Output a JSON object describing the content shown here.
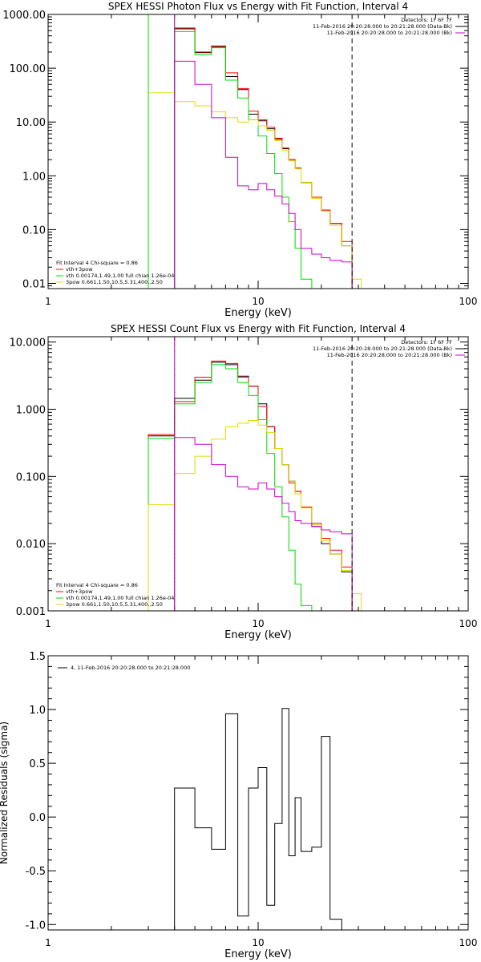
{
  "chart_data": [
    {
      "type": "line",
      "title": "SPEX HESSI Photon Flux vs Energy with Fit Function, Interval 4",
      "xlabel": "Energy (keV)",
      "ylabel": "",
      "xscale": "log",
      "yscale": "log",
      "xlim": [
        1,
        100
      ],
      "ylim": [
        0.008,
        1000
      ],
      "xticks": [
        "1",
        "10",
        "100"
      ],
      "yticks": [
        "1000.00",
        "100.00",
        "10.00",
        "1.00",
        "0.10",
        "0.01"
      ],
      "edges": [
        3.0,
        4.0,
        5.0,
        6.0,
        7.0,
        8.0,
        9.0,
        10.0,
        11.0,
        12.0,
        13.0,
        14.0,
        15.0,
        16.0,
        18.0,
        20.0,
        22.0,
        25.0,
        28.0,
        31.0,
        35.0
      ],
      "series": [
        {
          "name": "",
          "color": "#000000",
          "values": [
            null,
            540,
            195,
            250,
            70,
            40,
            14.0,
            10.5,
            7.5,
            4.8,
            3.2,
            2.0,
            1.4,
            0.75,
            0.4,
            0.23,
            0.13,
            0.05,
            null,
            null
          ]
        },
        {
          "name": "vth+3pow",
          "color": "#ff0000",
          "values": [
            null,
            560,
            200,
            260,
            82,
            42,
            16.0,
            11.0,
            8.0,
            5.0,
            3.3,
            2.0,
            1.4,
            0.75,
            0.4,
            0.23,
            0.13,
            0.06,
            null,
            null
          ]
        },
        {
          "name": "vth 0.00174,1.49,1.00  full chian 1.26e-04",
          "color": "#00dd00",
          "values": [
            null,
            480,
            180,
            240,
            60,
            28,
            11.0,
            5.5,
            2.6,
            1.1,
            0.4,
            0.14,
            0.045,
            0.012,
            null,
            null,
            null,
            null,
            null,
            null
          ]
        },
        {
          "name": "3pow 0.661,1.50,10.5,5.31,400.,2.50",
          "color": "#dddd00",
          "values": [
            35,
            24,
            20,
            15.5,
            12,
            10,
            11.0,
            8.5,
            7.0,
            4.5,
            3.0,
            1.9,
            1.35,
            0.75,
            0.38,
            0.22,
            0.12,
            0.05,
            0.012,
            0.008
          ]
        },
        {
          "name": "",
          "color": "#cc00cc",
          "values": [
            null,
            135,
            50,
            12,
            2.2,
            0.65,
            0.55,
            0.72,
            0.55,
            0.42,
            0.3,
            0.2,
            0.1,
            0.045,
            0.035,
            0.03,
            0.027,
            0.025,
            null,
            null
          ]
        }
      ],
      "vlines": [
        {
          "x": 3.0,
          "color": "#00dd00",
          "style": "solid"
        },
        {
          "x": 4.0,
          "color": "#00dd00",
          "style": "solid"
        },
        {
          "x": 4.0,
          "color": "#cc00cc",
          "style": "solid"
        },
        {
          "x": 28.0,
          "color": "#000000",
          "style": "dashed"
        }
      ],
      "legend_top": [
        {
          "text": "Detectors: 1F 6F 7F",
          "color": ""
        },
        {
          "text": "11-Feb-2016 20:20:28.000 to 20:21:28.000 (Data-Bk)",
          "color": "#000000"
        },
        {
          "text": "11-Feb-2016 20:20:28.000 to 20:21:28.000 (Bk)",
          "color": "#cc00cc"
        }
      ],
      "legend_fit": [
        {
          "text": "Fit Interval  4   Chi-square = 0.86",
          "color": ""
        },
        {
          "text": "vth+3pow",
          "color": "#ff0000"
        },
        {
          "text": "vth 0.00174,1.49,1.00  full chian 1.26e-04",
          "color": "#00dd00"
        },
        {
          "text": "3pow 0.661,1.50,10.5,5.31,400.,2.50",
          "color": "#dddd00"
        }
      ]
    },
    {
      "type": "line",
      "title": "SPEX HESSI Count Flux vs Energy with Fit Function, Interval 4",
      "xlabel": "Energy (keV)",
      "ylabel": "",
      "xscale": "log",
      "yscale": "log",
      "xlim": [
        1,
        100
      ],
      "ylim": [
        0.001,
        12
      ],
      "xticks": [
        "1",
        "10",
        "100"
      ],
      "yticks": [
        "10.000",
        "1.000",
        "0.100",
        "0.010",
        "0.001"
      ],
      "edges": [
        3.0,
        4.0,
        5.0,
        6.0,
        7.0,
        8.0,
        9.0,
        10.0,
        11.0,
        12.0,
        13.0,
        14.0,
        15.0,
        16.0,
        18.0,
        20.0,
        22.0,
        25.0,
        28.0,
        31.0,
        35.0
      ],
      "series": [
        {
          "name": "",
          "color": "#000000",
          "values": [
            0.4,
            1.45,
            2.7,
            5.0,
            4.6,
            3.1,
            2.2,
            1.2,
            0.55,
            0.26,
            0.15,
            0.085,
            0.06,
            0.035,
            0.018,
            0.01,
            0.007,
            0.0038,
            null,
            null
          ]
        },
        {
          "name": "vth+3pow",
          "color": "#ff0000",
          "values": [
            0.42,
            1.3,
            3.0,
            5.2,
            4.8,
            3.0,
            2.2,
            1.1,
            0.55,
            0.26,
            0.15,
            0.08,
            0.06,
            0.035,
            0.02,
            0.012,
            0.008,
            0.0045,
            null,
            null
          ]
        },
        {
          "name": "vth 0.00174,1.49,1.00  full chian 1.26e-04",
          "color": "#00dd00",
          "values": [
            0.37,
            1.2,
            2.5,
            4.6,
            4.0,
            2.5,
            1.6,
            0.7,
            0.22,
            0.07,
            0.025,
            0.008,
            0.0025,
            0.0012,
            null,
            null,
            null,
            null,
            null,
            null
          ]
        },
        {
          "name": "3pow 0.661,1.50,10.5,5.31,400.,2.50",
          "color": "#dddd00",
          "values": [
            0.038,
            0.11,
            0.2,
            0.36,
            0.55,
            0.62,
            0.68,
            0.58,
            0.45,
            0.26,
            0.15,
            0.085,
            0.055,
            0.034,
            0.019,
            0.011,
            0.007,
            0.004,
            0.0018,
            0.0009
          ]
        },
        {
          "name": "",
          "color": "#cc00cc",
          "values": [
            null,
            0.38,
            0.3,
            0.15,
            0.1,
            0.07,
            0.065,
            0.08,
            0.065,
            0.05,
            0.04,
            0.03,
            0.022,
            0.02,
            0.018,
            0.016,
            0.015,
            0.014,
            null,
            null
          ]
        }
      ],
      "vlines": [
        {
          "x": 4.0,
          "color": "#000000",
          "style": "dotted"
        },
        {
          "x": 4.0,
          "color": "#cc00cc",
          "style": "solid"
        },
        {
          "x": 28.0,
          "color": "#000000",
          "style": "dashed"
        }
      ],
      "legend_top": [
        {
          "text": "Detectors: 1F 6F 7F",
          "color": ""
        },
        {
          "text": "11-Feb-2016 20:20:28.000 to 20:21:28.000 (Data-Bk)",
          "color": "#000000"
        },
        {
          "text": "11-Feb-2016 20:20:28.000 to 20:21:28.000 (Bk)",
          "color": "#cc00cc"
        }
      ],
      "legend_fit": [
        {
          "text": "Fit Interval  4   Chi-square = 0.86",
          "color": ""
        },
        {
          "text": "vth+3pow",
          "color": "#ff0000"
        },
        {
          "text": "vth 0.00174,1.49,1.00  full chian 1.26e-04",
          "color": "#00dd00"
        },
        {
          "text": "3pow 0.661,1.50,10.5,5.31,400.,2.50",
          "color": "#dddd00"
        }
      ]
    },
    {
      "type": "line",
      "title": "",
      "xlabel": "Energy (keV)",
      "ylabel": "Normalized Residuals (sigma)",
      "xscale": "log",
      "yscale": "linear",
      "xlim": [
        1,
        100
      ],
      "ylim": [
        -1.05,
        1.5
      ],
      "xticks": [
        "1",
        "10",
        "100"
      ],
      "yticks": [
        "1.5",
        "1.0",
        "0.5",
        "0.0",
        "-0.5",
        "-1.0"
      ],
      "edges": [
        4.0,
        5.0,
        6.0,
        7.0,
        8.0,
        9.0,
        10.0,
        11.0,
        12.0,
        13.0,
        14.0,
        15.0,
        16.0,
        18.0,
        20.0,
        22.0,
        25.0,
        28.0
      ],
      "series": [
        {
          "name": "4, 11-Feb-2016 20:20:28.000 to 20:21:28.000",
          "color": "#000000",
          "values": [
            0.27,
            -0.1,
            -0.3,
            0.96,
            -0.92,
            0.27,
            0.46,
            -0.82,
            -0.06,
            1.01,
            -0.36,
            0.18,
            -0.32,
            -0.28,
            0.75,
            -0.95,
            null
          ]
        }
      ],
      "vlines": [],
      "legend_top": [
        {
          "text": "4, 11-Feb-2016 20:20:28.000 to 20:21:28.000",
          "color": "#000000"
        }
      ],
      "legend_fit": []
    }
  ]
}
